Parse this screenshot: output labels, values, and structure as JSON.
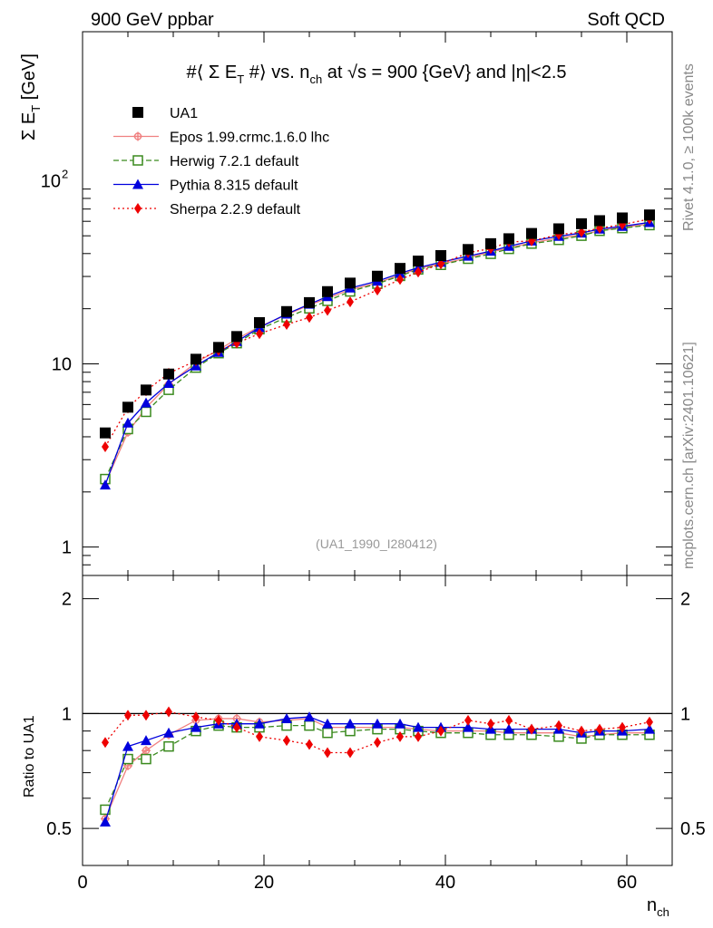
{
  "header": {
    "left": "900 GeV ppbar",
    "right": "Soft QCD"
  },
  "side_notes": {
    "rivet": "Rivet 4.1.0, ≥ 100k events",
    "mcplots": "mcplots.cern.ch [arXiv:2401.10621]"
  },
  "chart_data": {
    "type": "scatter",
    "title": "#⟨ Σ E_T #⟩ vs. n_ch at √s = 900 {GeV} and |η|<2.5",
    "title_parts": {
      "a": "#⟨ Σ E",
      "a_sub": "T",
      "b": " #⟩ vs. n",
      "b_sub": "ch",
      "c": " at ",
      "sqrt": "√s",
      "d": " = 900 {GeV} and |η|<2.5"
    },
    "analysis_label": "(UA1_1990_I280412)",
    "xlabel": "n",
    "xlabel_sub": "ch",
    "ylabel": "Σ E",
    "ylabel_sub": "T",
    "ylabel_unit": " [GeV]",
    "ratio_ylabel": "Ratio to UA1",
    "xlim": [
      0,
      65
    ],
    "ylim": [
      0.7,
      650
    ],
    "yscale": "log",
    "ratio_ylim": [
      0.4,
      2.3
    ],
    "x_ticks": [
      0,
      20,
      40,
      60
    ],
    "x_tick_labels": [
      "0",
      "20",
      "40",
      "60"
    ],
    "y_ticks": [
      1,
      10,
      100
    ],
    "y_tick_labels": [
      "1",
      "10",
      "10",
      "2"
    ],
    "ratio_ticks": [
      0.5,
      1,
      2
    ],
    "ratio_tick_labels": [
      "0.5",
      "1",
      "2"
    ],
    "x": [
      2.5,
      5,
      7,
      9.5,
      12.5,
      15,
      17,
      19.5,
      22.5,
      25,
      27,
      29.5,
      32.5,
      35,
      37,
      39.5,
      42.5,
      45,
      47,
      49.5,
      52.5,
      55,
      57,
      59.5,
      62.5
    ],
    "series": [
      {
        "name": "UA1",
        "marker": "square",
        "color": "#000000",
        "dash": "",
        "values": [
          4.2,
          5.8,
          7.2,
          8.8,
          10.6,
          12.3,
          14.1,
          16.8,
          19.3,
          21.6,
          24.8,
          27.6,
          30.1,
          33.2,
          36.4,
          39.0,
          42.1,
          45.3,
          48.2,
          51.5,
          54.6,
          58.2,
          60.5,
          62.6,
          65.0
        ]
      },
      {
        "name": "Epos 1.99.crmc.1.6.0 lhc",
        "marker": "cross",
        "color": "#f08080",
        "dash": "",
        "ratio": [
          0.53,
          0.73,
          0.8,
          0.88,
          0.96,
          0.97,
          0.97,
          0.95,
          0.96,
          0.97,
          0.92,
          0.92,
          0.92,
          0.92,
          0.91,
          0.9,
          0.9,
          0.9,
          0.89,
          0.89,
          0.89,
          0.87,
          0.88,
          0.89,
          0.89
        ]
      },
      {
        "name": "Herwig 7.2.1 default",
        "marker": "open-square",
        "color": "#3a8a1e",
        "dash": "6 3",
        "ratio": [
          0.56,
          0.76,
          0.76,
          0.82,
          0.9,
          0.93,
          0.92,
          0.92,
          0.93,
          0.93,
          0.89,
          0.9,
          0.91,
          0.91,
          0.9,
          0.89,
          0.89,
          0.88,
          0.88,
          0.88,
          0.87,
          0.86,
          0.88,
          0.88,
          0.88
        ]
      },
      {
        "name": "Pythia 8.315 default",
        "marker": "triangle",
        "color": "#0000dd",
        "dash": "",
        "ratio": [
          0.52,
          0.82,
          0.85,
          0.89,
          0.92,
          0.94,
          0.94,
          0.94,
          0.97,
          0.98,
          0.94,
          0.94,
          0.94,
          0.94,
          0.92,
          0.92,
          0.92,
          0.91,
          0.91,
          0.91,
          0.91,
          0.89,
          0.9,
          0.9,
          0.91
        ]
      },
      {
        "name": "Sherpa 2.2.9 default",
        "marker": "diamond",
        "color": "#ee0000",
        "dash": "2 3",
        "ratio": [
          0.84,
          0.99,
          0.99,
          1.01,
          0.98,
          0.96,
          0.92,
          0.87,
          0.85,
          0.83,
          0.79,
          0.79,
          0.84,
          0.87,
          0.87,
          0.9,
          0.96,
          0.94,
          0.96,
          0.91,
          0.93,
          0.9,
          0.91,
          0.92,
          0.95
        ]
      }
    ]
  }
}
